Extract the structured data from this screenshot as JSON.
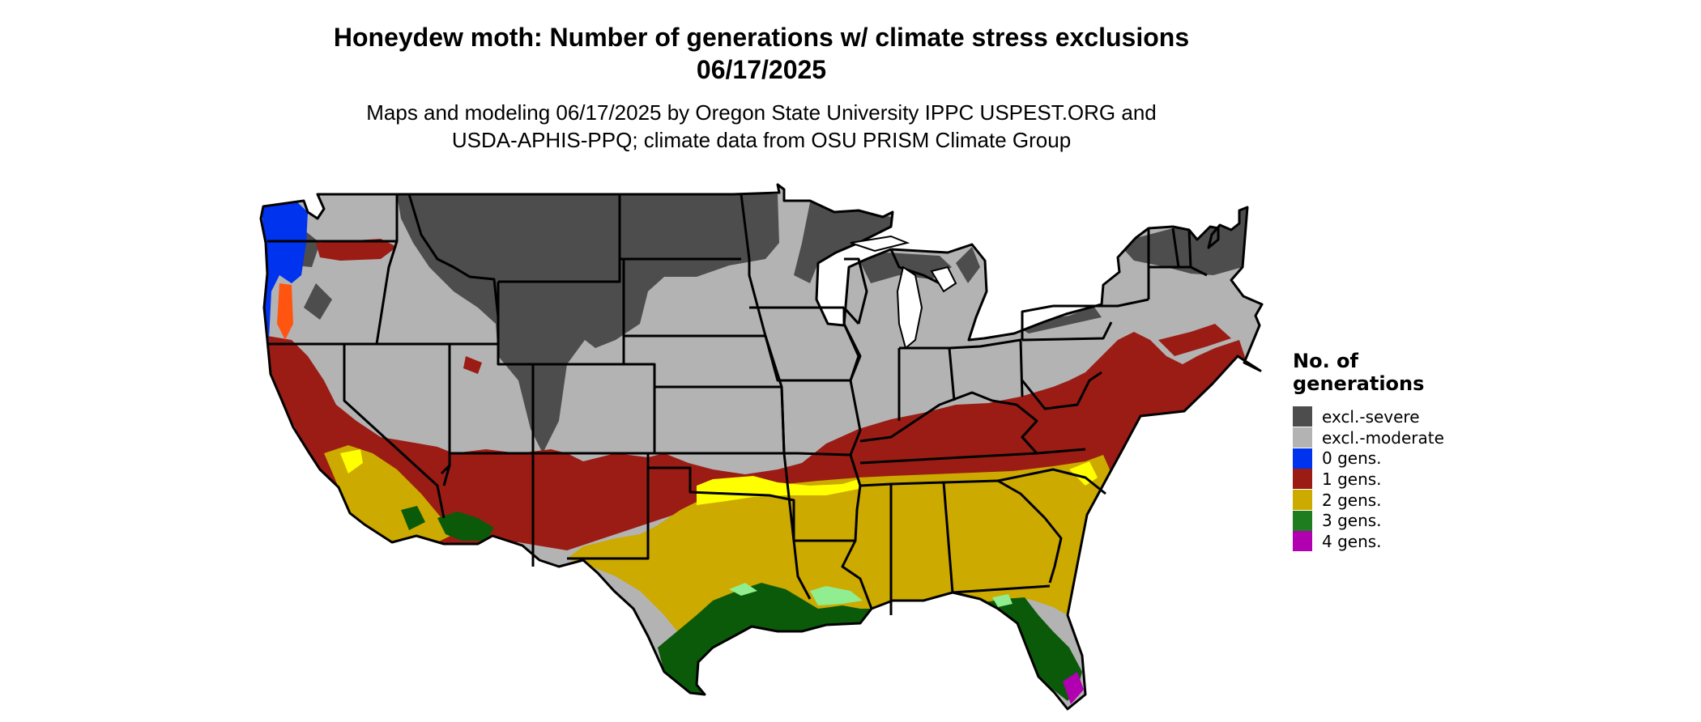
{
  "title_line1": "Honeydew moth: Number of generations w/ climate stress exclusions",
  "title_line2": "06/17/2025",
  "subtitle_line1": "Maps and modeling 06/17/2025 by Oregon State University IPPC USPEST.ORG and",
  "subtitle_line2": "USDA-APHIS-PPQ; climate data from OSU PRISM Climate Group",
  "legend": {
    "title_line1": "No. of",
    "title_line2": "generations",
    "items": [
      {
        "label": "excl.-severe",
        "color": "#4d4d4d"
      },
      {
        "label": "excl.-moderate",
        "color": "#b3b3b3"
      },
      {
        "label": "0 gens.",
        "color": "#0033ee"
      },
      {
        "label": "1 gens.",
        "color": "#9b1c14"
      },
      {
        "label": "2 gens.",
        "color": "#ccaa00"
      },
      {
        "label": "3 gens.",
        "color": "#1e7d1e"
      },
      {
        "label": "4 gens.",
        "color": "#b000b0"
      }
    ]
  },
  "colors": {
    "severe": "#4d4d4d",
    "moderate": "#b3b3b3",
    "zero": "#0033ee",
    "one": "#9b1c14",
    "two": "#ccaa00",
    "two_bright": "#ffff00",
    "three": "#1e7d1e",
    "three_dark": "#0a5a0a",
    "three_light": "#90ee90",
    "four": "#b000b0",
    "orange": "#ff5511",
    "border": "#000000"
  }
}
